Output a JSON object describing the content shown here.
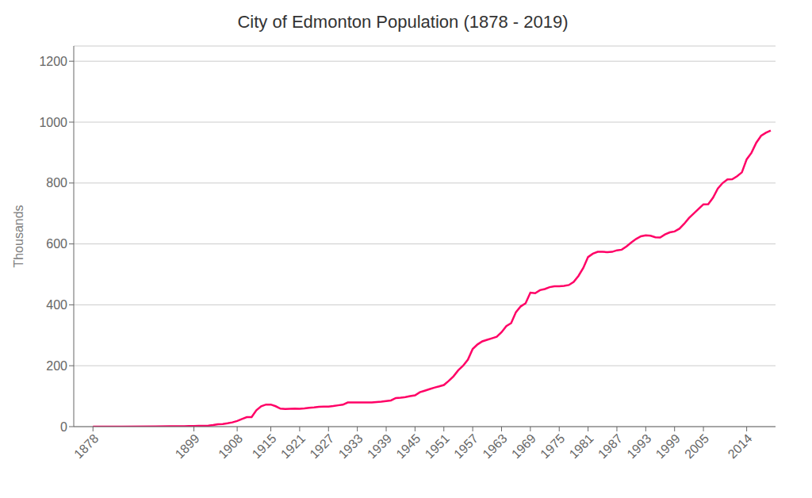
{
  "chart_data": {
    "type": "line",
    "title": "City of Edmonton Population (1878 - 2019)",
    "ylabel": "Thousands",
    "color": "#FF0066",
    "grid": "y",
    "xlim": [
      1874,
      2020
    ],
    "xticks": [
      1878,
      1899,
      1908,
      1915,
      1921,
      1927,
      1933,
      1939,
      1945,
      1951,
      1957,
      1963,
      1969,
      1975,
      1981,
      1987,
      1993,
      1999,
      2005,
      2014
    ],
    "ylim": [
      0,
      1250
    ],
    "yticks": [
      0,
      200,
      400,
      600,
      800,
      1000,
      1200
    ],
    "x": [
      1878,
      1881,
      1884,
      1891,
      1894,
      1895,
      1896,
      1897,
      1898,
      1899,
      1900,
      1901,
      1902,
      1903,
      1904,
      1905,
      1906,
      1907,
      1908,
      1909,
      1910,
      1911,
      1912,
      1913,
      1914,
      1915,
      1916,
      1917,
      1918,
      1919,
      1920,
      1921,
      1922,
      1923,
      1924,
      1925,
      1926,
      1927,
      1928,
      1929,
      1930,
      1931,
      1932,
      1933,
      1934,
      1935,
      1936,
      1937,
      1938,
      1939,
      1940,
      1941,
      1942,
      1943,
      1944,
      1945,
      1946,
      1947,
      1948,
      1949,
      1950,
      1951,
      1952,
      1953,
      1954,
      1955,
      1956,
      1957,
      1958,
      1959,
      1960,
      1961,
      1962,
      1963,
      1964,
      1965,
      1966,
      1967,
      1968,
      1969,
      1970,
      1971,
      1972,
      1973,
      1974,
      1975,
      1976,
      1977,
      1978,
      1979,
      1980,
      1981,
      1982,
      1983,
      1984,
      1985,
      1986,
      1987,
      1988,
      1989,
      1990,
      1991,
      1992,
      1993,
      1994,
      1995,
      1996,
      1997,
      1998,
      1999,
      2000,
      2001,
      2002,
      2003,
      2004,
      2005,
      2006,
      2007,
      2008,
      2009,
      2010,
      2011,
      2012,
      2013,
      2014,
      2015,
      2016,
      2017,
      2018,
      2019
    ],
    "values": [
      0.3,
      0.3,
      0.3,
      0.7,
      1.0,
      1.0,
      1.2,
      1.5,
      2.0,
      2.2,
      2.5,
      2.6,
      3.5,
      5.0,
      8.0,
      8.4,
      11.0,
      14.0,
      18.5,
      24.9,
      31.0,
      31.1,
      53.8,
      67.0,
      72.5,
      72.5,
      67.0,
      59.0,
      58.0,
      58.5,
      59.0,
      58.8,
      60.0,
      62.0,
      63.0,
      65.0,
      65.5,
      66.0,
      67.5,
      70.0,
      72.0,
      79.2,
      79.2,
      79.2,
      79.2,
      79.2,
      79.2,
      81.0,
      82.0,
      84.0,
      86.0,
      93.8,
      95.0,
      97.0,
      100.0,
      103.0,
      113.0,
      118.0,
      123.0,
      128.0,
      132.0,
      136.7,
      150.0,
      165.0,
      185.0,
      200.0,
      220.0,
      255.0,
      270.0,
      280.0,
      285.0,
      290.0,
      295.0,
      310.0,
      330.0,
      340.0,
      376.0,
      395.0,
      405.0,
      440.0,
      438.0,
      448.3,
      452.0,
      458.0,
      461.0,
      461.0,
      462.0,
      465.0,
      475.0,
      495.0,
      521.0,
      557.0,
      568.0,
      574.0,
      574.0,
      573.0,
      573.9,
      579.0,
      581.0,
      592.0,
      605.0,
      616.3,
      625.0,
      628.0,
      627.0,
      622.0,
      621.0,
      631.0,
      638.0,
      641.0,
      650.0,
      666.1,
      685.0,
      700.0,
      715.0,
      730.0,
      730.4,
      752.0,
      782.0,
      800.0,
      812.0,
      812.2,
      822.3,
      835.0,
      877.9,
      899.4,
      932.5,
      955.0,
      965.0,
      972.2
    ]
  }
}
